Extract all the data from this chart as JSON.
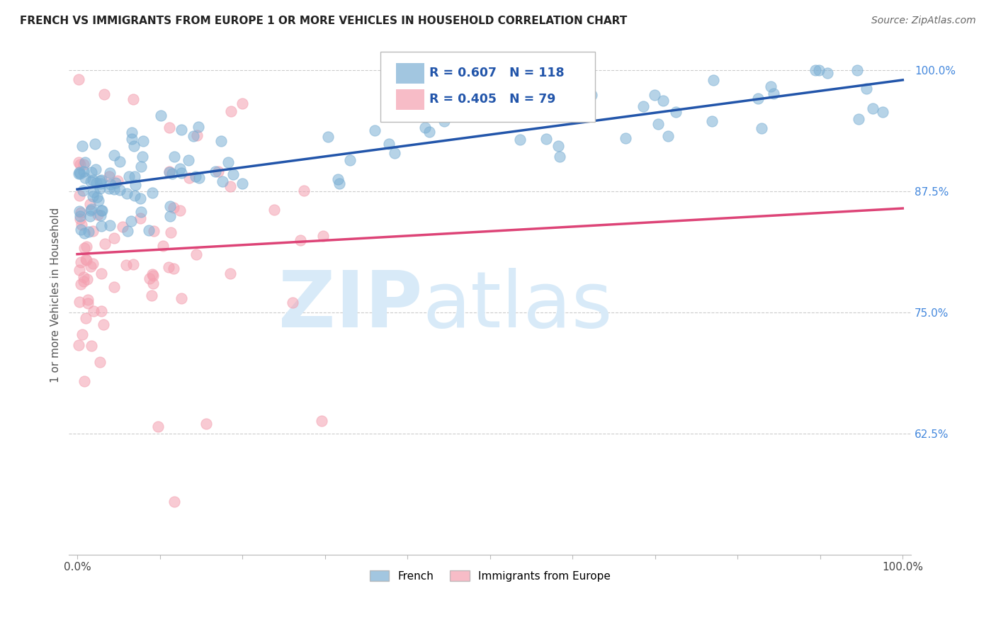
{
  "title": "FRENCH VS IMMIGRANTS FROM EUROPE 1 OR MORE VEHICLES IN HOUSEHOLD CORRELATION CHART",
  "source": "Source: ZipAtlas.com",
  "ylabel": "1 or more Vehicles in Household",
  "legend_french": "French",
  "legend_immigrants": "Immigrants from Europe",
  "R_french": 0.607,
  "N_french": 118,
  "R_immigrants": 0.405,
  "N_immigrants": 79,
  "french_color": "#7BAFD4",
  "immigrants_color": "#F4A0B0",
  "trend_french_color": "#2255AA",
  "trend_immigrants_color": "#DD4477",
  "watermark_zip": "ZIP",
  "watermark_atlas": "atlas",
  "watermark_color": "#D8EAF8",
  "bubble_size": 120,
  "ylim_min": 0.5,
  "ylim_max": 1.035,
  "xlim_min": -1.0,
  "xlim_max": 101.0
}
